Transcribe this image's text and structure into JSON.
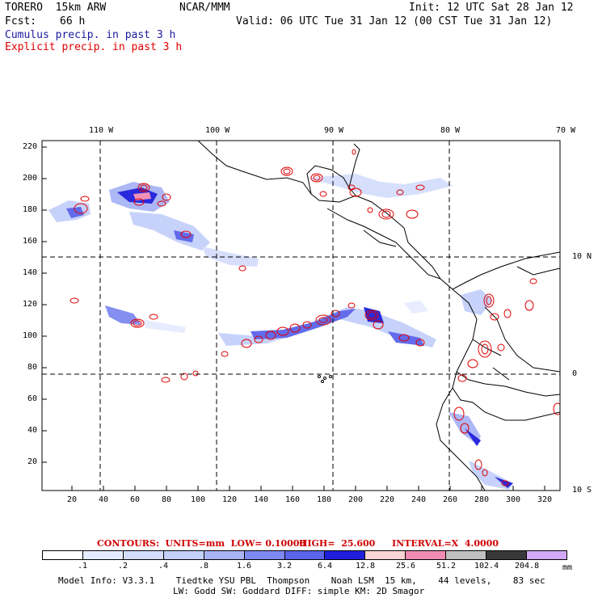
{
  "header": {
    "model": "TORERO  15km ARW",
    "org": "NCAR/MMM",
    "init": "Init: 12 UTC Sat 28 Jan 12",
    "fcst_label": "Fcst:",
    "fcst_value": "66 h",
    "valid": "Valid: 06 UTC Tue 31 Jan 12 (00 CST Tue 31 Jan 12)",
    "cumulus": "Cumulus precip. in past 3 h",
    "explicit": "Explicit precip. in past 3 h"
  },
  "map": {
    "lon_labels": [
      "110 W",
      "100 W",
      "90 W",
      "80 W",
      "70 W"
    ],
    "lat_labels": [
      "10 N",
      "0",
      "10 S"
    ],
    "y_ticks": [
      "220",
      "200",
      "180",
      "160",
      "140",
      "120",
      "100",
      "80",
      "60",
      "40",
      "20"
    ],
    "x_ticks": [
      "20",
      "40",
      "60",
      "80",
      "100",
      "120",
      "140",
      "160",
      "180",
      "200",
      "220",
      "240",
      "260",
      "280",
      "300",
      "320"
    ]
  },
  "contours": {
    "label": "CONTOURS:  UNITS=mm  LOW= 0.10000",
    "high": "HIGH=  25.600",
    "interval": "INTERVAL=X  4.0000"
  },
  "colorbar": {
    "colors": [
      "#ffffff",
      "#e6ecff",
      "#d4ddfc",
      "#c4d0fa",
      "#a8b4f5",
      "#7e8af0",
      "#5a64ea",
      "#1e1edc",
      "#fad4d4",
      "#f08cb4",
      "#c0c0c0",
      "#383838",
      "#d4a8f8"
    ],
    "labels": [
      ".1",
      ".2",
      ".4",
      ".8",
      "1.6",
      "3.2",
      "6.4",
      "12.8",
      "25.6",
      "51.2",
      "102.4",
      "204.8"
    ],
    "unit": "mm"
  },
  "footer": {
    "line1": "Model Info: V3.3.1    Tiedtke YSU PBL  Thompson    Noah LSM  15 km,    44 levels,    83 sec",
    "line2": "LW: Godd SW: Goddard DIFF: simple KM: 2D Smagor"
  }
}
